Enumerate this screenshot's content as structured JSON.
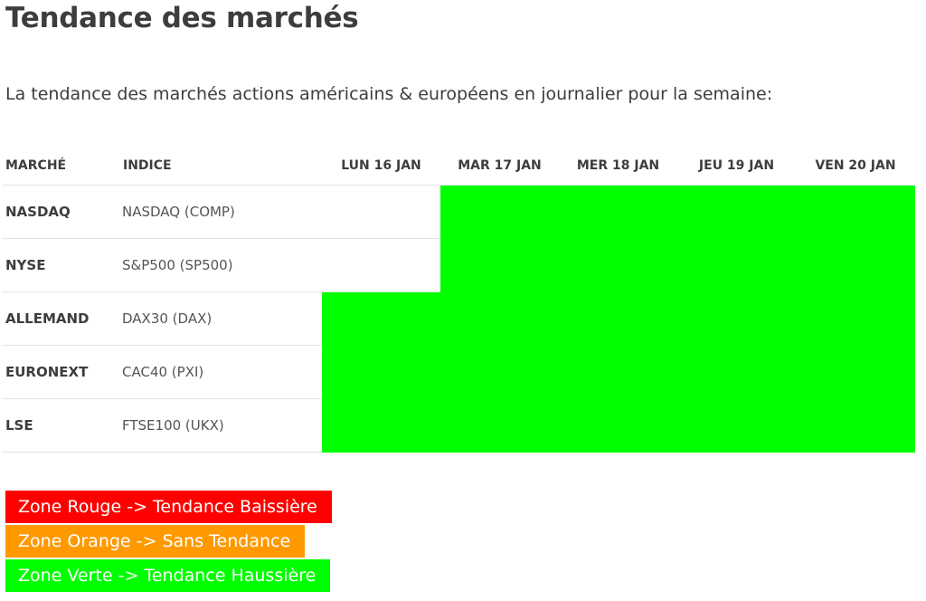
{
  "title": "Tendance des marchés",
  "intro": "La tendance des marchés actions américains & européens en journalier pour la semaine:",
  "table": {
    "headers": [
      "MARCHÉ",
      "INDICE",
      "LUN 16 JAN",
      "MAR 17 JAN",
      "MER 18 JAN",
      "JEU 19 JAN",
      "VEN 20 JAN"
    ],
    "rows": [
      {
        "market": "NASDAQ",
        "index": "NASDAQ (COMP)",
        "days": [
          "",
          "up",
          "up",
          "up",
          "up"
        ]
      },
      {
        "market": "NYSE",
        "index": "S&P500 (SP500)",
        "days": [
          "",
          "up",
          "up",
          "up",
          "up"
        ]
      },
      {
        "market": "ALLEMAND",
        "index": "DAX30 (DAX)",
        "days": [
          "up",
          "up",
          "up",
          "up",
          "up"
        ]
      },
      {
        "market": "EURONEXT",
        "index": "CAC40 (PXI)",
        "days": [
          "up",
          "up",
          "up",
          "up",
          "up"
        ]
      },
      {
        "market": "LSE",
        "index": "FTSE100 (UKX)",
        "days": [
          "up",
          "up",
          "up",
          "up",
          "up"
        ]
      }
    ]
  },
  "legend": [
    {
      "label": "Zone Rouge -> Tendance Baissière",
      "color": "#ff0000"
    },
    {
      "label": "Zone Orange -> Sans Tendance",
      "color": "#ff9900"
    },
    {
      "label": "Zone Verte -> Tendance Haussière",
      "color": "#00ff00"
    }
  ],
  "colors": {
    "up": "#00ff00",
    "neutral": "#ff9900",
    "down": "#ff0000"
  }
}
